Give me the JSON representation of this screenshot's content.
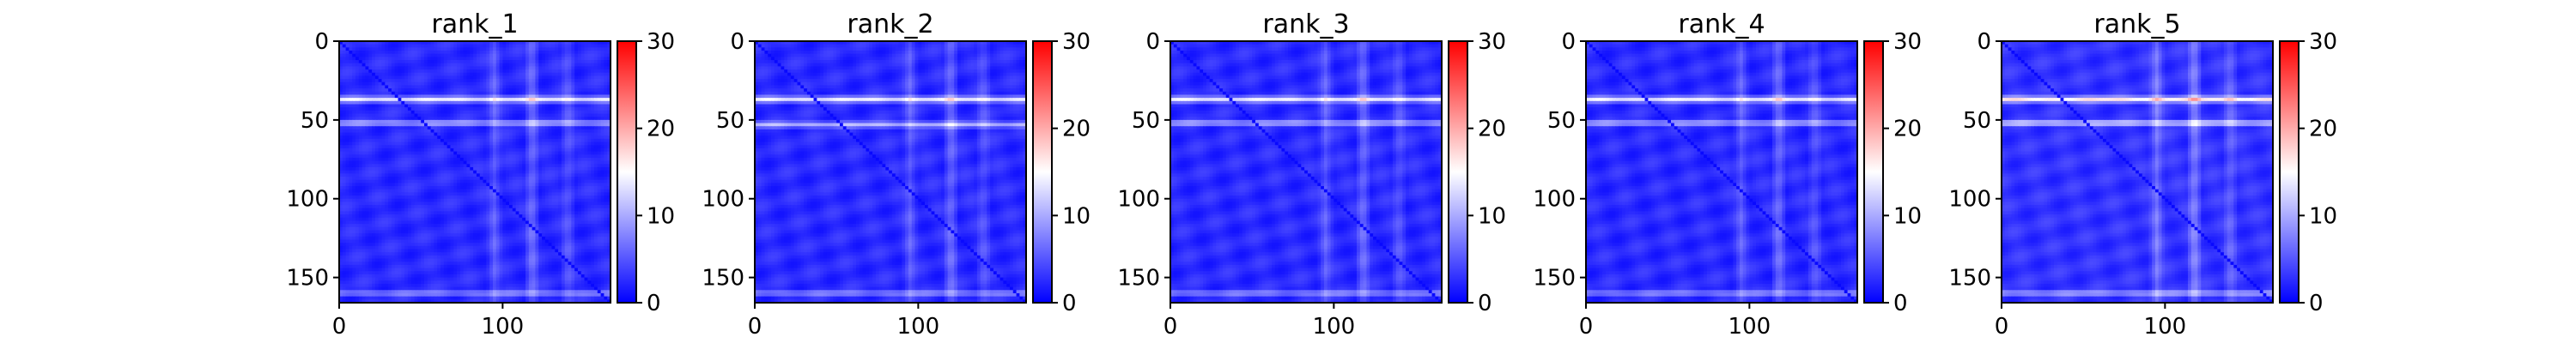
{
  "chart_data": [
    {
      "type": "heatmap",
      "title": "rank_1",
      "matrix_size": 166,
      "x_ticks": [
        0,
        100
      ],
      "y_ticks": [
        0,
        50,
        100,
        150
      ],
      "xlim": [
        0,
        166
      ],
      "ylim": [
        166,
        0
      ],
      "colorbar": {
        "range": [
          0,
          30
        ],
        "ticks": [
          0,
          10,
          20,
          30
        ],
        "colormap": "bwr"
      },
      "pattern": {
        "base_value": 2.5,
        "bright_rows": [
          [
            37,
            11
          ],
          [
            52,
            8
          ],
          [
            160,
            6
          ]
        ],
        "bright_cols": [
          [
            95,
            6
          ],
          [
            118,
            8
          ],
          [
            140,
            5
          ]
        ],
        "diagonal_value": 0.5
      }
    },
    {
      "type": "heatmap",
      "title": "rank_2",
      "matrix_size": 166,
      "x_ticks": [
        0,
        100
      ],
      "y_ticks": [
        0,
        50,
        100,
        150
      ],
      "xlim": [
        0,
        166
      ],
      "ylim": [
        166,
        0
      ],
      "colorbar": {
        "range": [
          0,
          30
        ],
        "ticks": [
          0,
          10,
          20,
          30
        ],
        "colormap": "bwr"
      },
      "pattern": {
        "base_value": 2.5,
        "bright_rows": [
          [
            37,
            11
          ],
          [
            53,
            8
          ],
          [
            160,
            6
          ]
        ],
        "bright_cols": [
          [
            95,
            6
          ],
          [
            120,
            8
          ],
          [
            140,
            5
          ]
        ],
        "diagonal_value": 0.5
      }
    },
    {
      "type": "heatmap",
      "title": "rank_3",
      "matrix_size": 166,
      "x_ticks": [
        0,
        100
      ],
      "y_ticks": [
        0,
        50,
        100,
        150
      ],
      "xlim": [
        0,
        166
      ],
      "ylim": [
        166,
        0
      ],
      "colorbar": {
        "range": [
          0,
          30
        ],
        "ticks": [
          0,
          10,
          20,
          30
        ],
        "colormap": "bwr"
      },
      "pattern": {
        "base_value": 2.5,
        "bright_rows": [
          [
            37,
            11
          ],
          [
            52,
            8
          ],
          [
            160,
            6
          ]
        ],
        "bright_cols": [
          [
            95,
            6
          ],
          [
            118,
            8
          ],
          [
            140,
            5
          ]
        ],
        "diagonal_value": 0.5
      }
    },
    {
      "type": "heatmap",
      "title": "rank_4",
      "matrix_size": 166,
      "x_ticks": [
        0,
        100
      ],
      "y_ticks": [
        0,
        50,
        100,
        150
      ],
      "xlim": [
        0,
        166
      ],
      "ylim": [
        166,
        0
      ],
      "colorbar": {
        "range": [
          0,
          30
        ],
        "ticks": [
          0,
          10,
          20,
          30
        ],
        "colormap": "bwr"
      },
      "pattern": {
        "base_value": 2.5,
        "bright_rows": [
          [
            37,
            11
          ],
          [
            52,
            8
          ],
          [
            160,
            6
          ]
        ],
        "bright_cols": [
          [
            95,
            6
          ],
          [
            118,
            8
          ],
          [
            140,
            5
          ]
        ],
        "diagonal_value": 0.5
      }
    },
    {
      "type": "heatmap",
      "title": "rank_5",
      "matrix_size": 166,
      "x_ticks": [
        0,
        100
      ],
      "y_ticks": [
        0,
        50,
        100,
        150
      ],
      "xlim": [
        0,
        166
      ],
      "ylim": [
        166,
        0
      ],
      "colorbar": {
        "range": [
          0,
          30
        ],
        "ticks": [
          0,
          10,
          20,
          30
        ],
        "colormap": "bwr"
      },
      "pattern": {
        "base_value": 3,
        "bright_rows": [
          [
            37,
            13
          ],
          [
            52,
            10
          ],
          [
            160,
            7
          ]
        ],
        "bright_cols": [
          [
            95,
            8
          ],
          [
            118,
            10
          ],
          [
            140,
            6
          ]
        ],
        "diagonal_value": 0.5
      }
    }
  ],
  "colors": {
    "low": "#0000ff",
    "mid": "#ffffff",
    "high": "#ff0000"
  }
}
